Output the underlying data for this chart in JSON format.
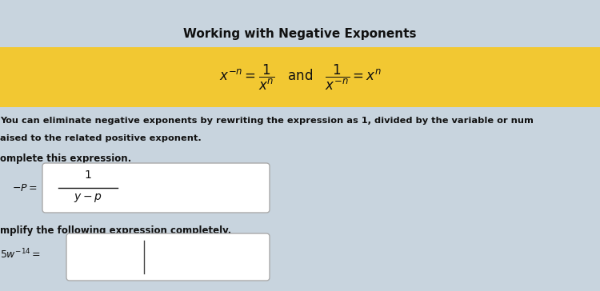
{
  "title": "Working with Negative Exponents",
  "title_fontsize": 11,
  "title_fontweight": "bold",
  "yellow_band_color": "#F2C832",
  "bg_color": "#c8d4de",
  "text_color": "#111111",
  "desc_line1": "You can eliminate negative exponents by rewriting the expression as 1, divided by the variable or num",
  "desc_line2": "aised to the related positive exponent.",
  "section1_label": "omplete this expression.",
  "section2_label": "mplify the following expression completely.",
  "box1_label": "$-P=$",
  "box2_label": "$5w^{-14}=$"
}
